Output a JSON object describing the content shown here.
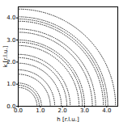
{
  "chart_data": {
    "type": "rings",
    "x_label": "h [r.l.u.]",
    "y_label": "k [r.l.u.]",
    "radii": [
      0.85,
      0.95,
      1.05,
      1.45,
      1.65,
      1.95,
      2.2,
      2.35,
      2.75,
      2.9,
      3.0,
      3.35,
      3.5,
      3.85,
      3.95,
      4.05,
      4.4
    ],
    "color": "#222222",
    "line_style": "dotted",
    "xlim": [
      0,
      4.5
    ],
    "ylim": [
      0,
      4.5
    ],
    "xticks": [
      0,
      1,
      2,
      3,
      4
    ],
    "yticks": [
      0,
      1,
      2,
      3,
      4
    ]
  }
}
